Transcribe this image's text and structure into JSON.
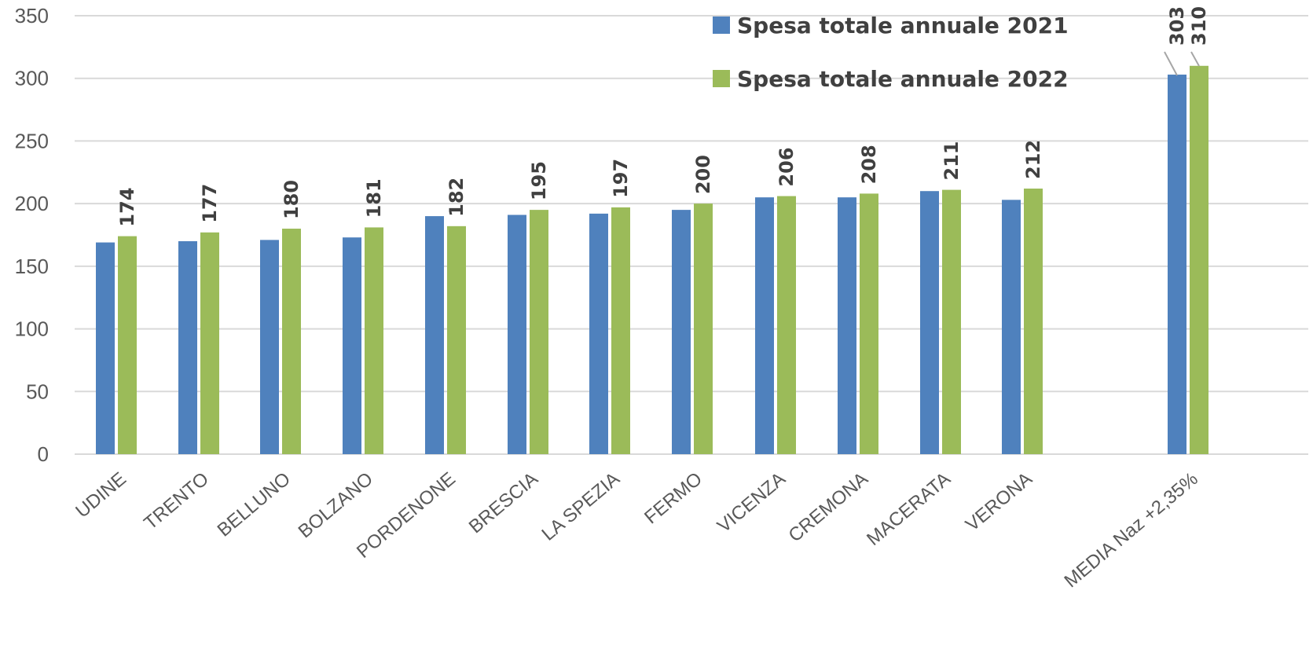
{
  "chart_data": {
    "type": "bar",
    "categories": [
      "UDINE",
      "TRENTO",
      "BELLUNO",
      "BOLZANO",
      "PORDENONE",
      "BRESCIA",
      "LA SPEZIA",
      "FERMO",
      "VICENZA",
      "CREMONA",
      "MACERATA",
      "VERONA",
      "MEDIA Naz +2,35%"
    ],
    "series": [
      {
        "name": "Spesa totale annuale 2021",
        "color": "#4f81bd",
        "values": [
          169,
          170,
          171,
          173,
          190,
          191,
          192,
          195,
          205,
          205,
          210,
          203,
          303
        ],
        "labels": [
          "",
          "",
          "",
          "",
          "",
          "",
          "",
          "",
          "",
          "",
          "",
          "",
          "303"
        ]
      },
      {
        "name": "Spesa totale annuale 2022",
        "color": "#9bbb59",
        "values": [
          174,
          177,
          180,
          181,
          182,
          195,
          197,
          200,
          206,
          208,
          211,
          212,
          310
        ],
        "labels": [
          "174",
          "177",
          "180",
          "181",
          "182",
          "195",
          "197",
          "200",
          "206",
          "208",
          "211",
          "212",
          "310"
        ]
      }
    ],
    "yticks": [
      "0",
      "50",
      "100",
      "150",
      "200",
      "250",
      "300",
      "350"
    ],
    "ylim": [
      0,
      350
    ],
    "grid": true,
    "legend_position": "top-right"
  }
}
